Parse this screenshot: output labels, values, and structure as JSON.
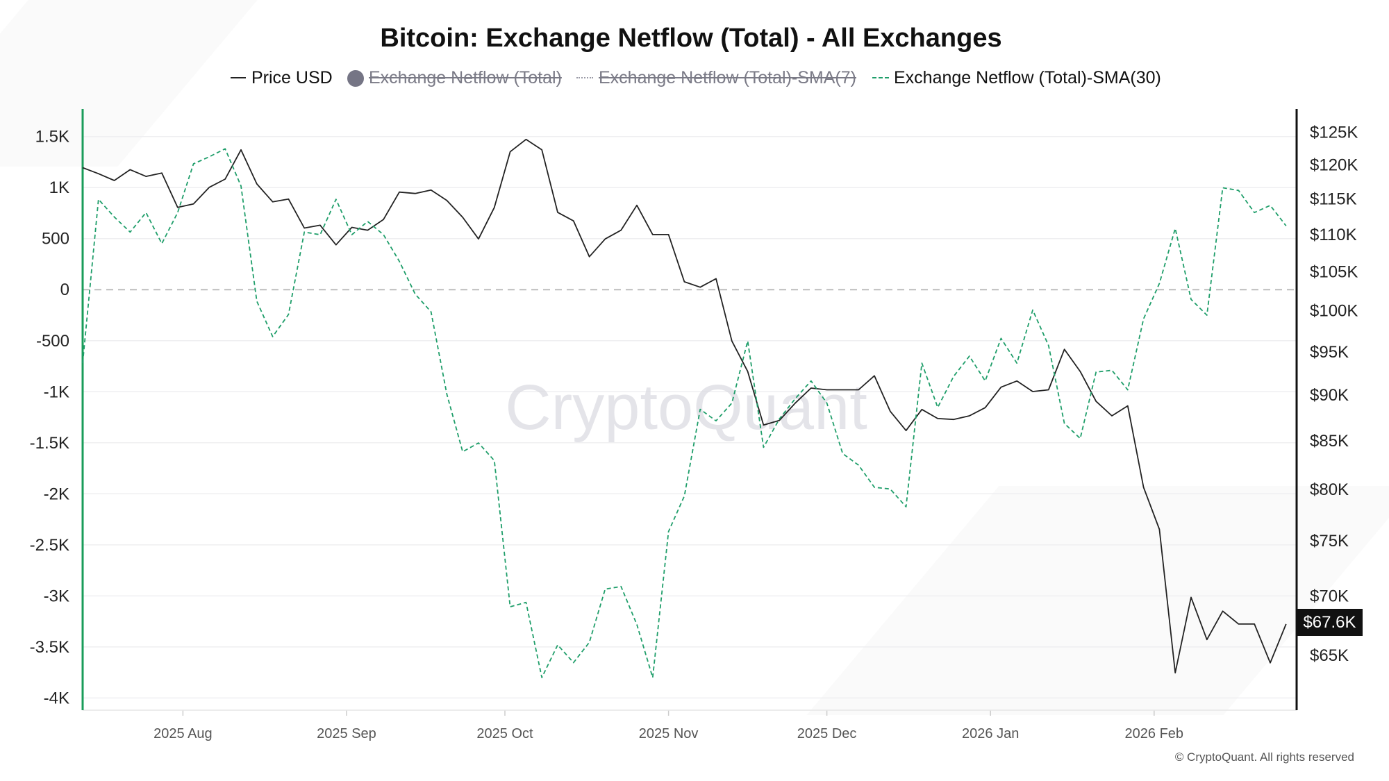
{
  "chart_data": {
    "type": "line",
    "title": "Bitcoin: Exchange Netflow (Total) - All Exchanges",
    "legend": [
      {
        "name": "Price USD",
        "visible": true,
        "color": "#222222",
        "style": "solid"
      },
      {
        "name": "Exchange Netflow (Total)",
        "visible": false,
        "color": "#757585",
        "style": "bar"
      },
      {
        "name": "Exchange Netflow (Total)-SMA(7)",
        "visible": false,
        "color": "#9a9aa6",
        "style": "dotted"
      },
      {
        "name": "Exchange Netflow (Total)-SMA(30)",
        "visible": true,
        "color": "#1f9e6a",
        "style": "dashed"
      }
    ],
    "legend_placement": "top-center",
    "x_range": [
      "2025-07-13",
      "2026-02-28"
    ],
    "x_ticks": [
      {
        "date": "2025-08-01",
        "label": "2025 Aug"
      },
      {
        "date": "2025-09-01",
        "label": "2025 Sep"
      },
      {
        "date": "2025-10-01",
        "label": "2025 Oct"
      },
      {
        "date": "2025-11-01",
        "label": "2025 Nov"
      },
      {
        "date": "2025-12-01",
        "label": "2025 Dec"
      },
      {
        "date": "2026-01-01",
        "label": "2026 Jan"
      },
      {
        "date": "2026-02-01",
        "label": "2026 Feb"
      }
    ],
    "y_left": {
      "lim": [
        -4120,
        1770
      ],
      "ticks": [
        {
          "v": 1500,
          "label": "1.5K"
        },
        {
          "v": 1000,
          "label": "1K"
        },
        {
          "v": 500,
          "label": "500"
        },
        {
          "v": 0,
          "label": "0"
        },
        {
          "v": -500,
          "label": "-500"
        },
        {
          "v": -1000,
          "label": "-1K"
        },
        {
          "v": -1500,
          "label": "-1.5K"
        },
        {
          "v": -2000,
          "label": "-2K"
        },
        {
          "v": -2500,
          "label": "-2.5K"
        },
        {
          "v": -3000,
          "label": "-3K"
        },
        {
          "v": -3500,
          "label": "-3.5K"
        },
        {
          "v": -4000,
          "label": "-4K"
        }
      ],
      "axis_color": "#1a9c5a"
    },
    "y_right": {
      "scale": "log",
      "unit": "thousand USD",
      "lim": [
        60.7,
        128.7
      ],
      "ticks": [
        {
          "v": 125,
          "label": "$125K"
        },
        {
          "v": 120,
          "label": "$120K"
        },
        {
          "v": 115,
          "label": "$115K"
        },
        {
          "v": 110,
          "label": "$110K"
        },
        {
          "v": 105,
          "label": "$105K"
        },
        {
          "v": 100,
          "label": "$100K"
        },
        {
          "v": 95,
          "label": "$95K"
        },
        {
          "v": 90,
          "label": "$90K"
        },
        {
          "v": 85,
          "label": "$85K"
        },
        {
          "v": 80,
          "label": "$80K"
        },
        {
          "v": 75,
          "label": "$75K"
        },
        {
          "v": 70,
          "label": "$70K"
        },
        {
          "v": 65,
          "label": "$65K"
        }
      ],
      "last_value_label": "$67.6K"
    },
    "grid": true,
    "zero_line": "dashed",
    "dates": [
      "2025-07-13",
      "2025-07-16",
      "2025-07-19",
      "2025-07-22",
      "2025-07-25",
      "2025-07-28",
      "2025-07-31",
      "2025-08-03",
      "2025-08-06",
      "2025-08-09",
      "2025-08-12",
      "2025-08-15",
      "2025-08-18",
      "2025-08-21",
      "2025-08-24",
      "2025-08-27",
      "2025-08-30",
      "2025-09-02",
      "2025-09-05",
      "2025-09-08",
      "2025-09-11",
      "2025-09-14",
      "2025-09-17",
      "2025-09-20",
      "2025-09-23",
      "2025-09-26",
      "2025-09-29",
      "2025-10-02",
      "2025-10-05",
      "2025-10-08",
      "2025-10-11",
      "2025-10-14",
      "2025-10-17",
      "2025-10-20",
      "2025-10-23",
      "2025-10-26",
      "2025-10-29",
      "2025-11-01",
      "2025-11-04",
      "2025-11-07",
      "2025-11-10",
      "2025-11-13",
      "2025-11-16",
      "2025-11-19",
      "2025-11-22",
      "2025-11-25",
      "2025-11-28",
      "2025-12-01",
      "2025-12-04",
      "2025-12-07",
      "2025-12-10",
      "2025-12-13",
      "2025-12-16",
      "2025-12-19",
      "2025-12-22",
      "2025-12-25",
      "2025-12-28",
      "2025-12-31",
      "2026-01-03",
      "2026-01-06",
      "2026-01-09",
      "2026-01-12",
      "2026-01-15",
      "2026-01-18",
      "2026-01-21",
      "2026-01-24",
      "2026-01-27",
      "2026-01-30",
      "2026-02-02",
      "2026-02-05",
      "2026-02-08",
      "2026-02-11",
      "2026-02-14",
      "2026-02-17",
      "2026-02-20",
      "2026-02-23",
      "2026-02-26"
    ],
    "series": [
      {
        "name": "Price USD",
        "axis": "right",
        "values": [
          119.6,
          118.7,
          117.7,
          119.3,
          118.3,
          118.8,
          113.8,
          114.3,
          116.7,
          117.9,
          122.3,
          117.2,
          114.6,
          115.0,
          110.9,
          111.3,
          108.6,
          111.0,
          110.6,
          112.1,
          116.0,
          115.8,
          116.3,
          114.8,
          112.4,
          109.4,
          113.8,
          122.0,
          123.9,
          122.3,
          113.1,
          111.9,
          107.0,
          109.4,
          110.6,
          114.1,
          110.0,
          110.0,
          103.7,
          103.0,
          104.1,
          96.3,
          92.7,
          86.7,
          87.2,
          89.1,
          90.8,
          90.6,
          90.6,
          90.6,
          92.2,
          88.2,
          86.1,
          88.4,
          87.4,
          87.3,
          87.7,
          88.6,
          90.9,
          91.6,
          90.4,
          90.6,
          95.3,
          92.7,
          89.3,
          87.7,
          88.8,
          80.2,
          76.1,
          63.6,
          69.9,
          66.3,
          68.7,
          67.6,
          67.6,
          64.4,
          67.6
        ]
      },
      {
        "name": "Exchange Netflow (Total)-SMA(30)",
        "axis": "left",
        "values": [
          -720,
          885,
          712,
          564,
          755,
          451,
          755,
          1233,
          1302,
          1380,
          1016,
          -113,
          -460,
          -243,
          564,
          538,
          885,
          538,
          668,
          538,
          278,
          -43,
          -217,
          -1024,
          -1588,
          -1502,
          -1675,
          -3107,
          -3064,
          -3800,
          -3481,
          -3654,
          -3455,
          -2934,
          -2908,
          -3281,
          -3800,
          -2370,
          -2022,
          -1172,
          -1285,
          -1111,
          -503,
          -1545,
          -1267,
          -1068,
          -894,
          -1111,
          -1606,
          -1719,
          -1936,
          -1953,
          -2127,
          -720,
          -1154,
          -851,
          -651,
          -894,
          -477,
          -720,
          -200,
          -547,
          -1311,
          -1458,
          -807,
          -790,
          -981,
          -286,
          61,
          600,
          -95,
          -250,
          998,
          972,
          755,
          825,
          625
        ]
      }
    ]
  },
  "watermark": "CryptoQuant",
  "copyright": "© CryptoQuant. All rights reserved"
}
